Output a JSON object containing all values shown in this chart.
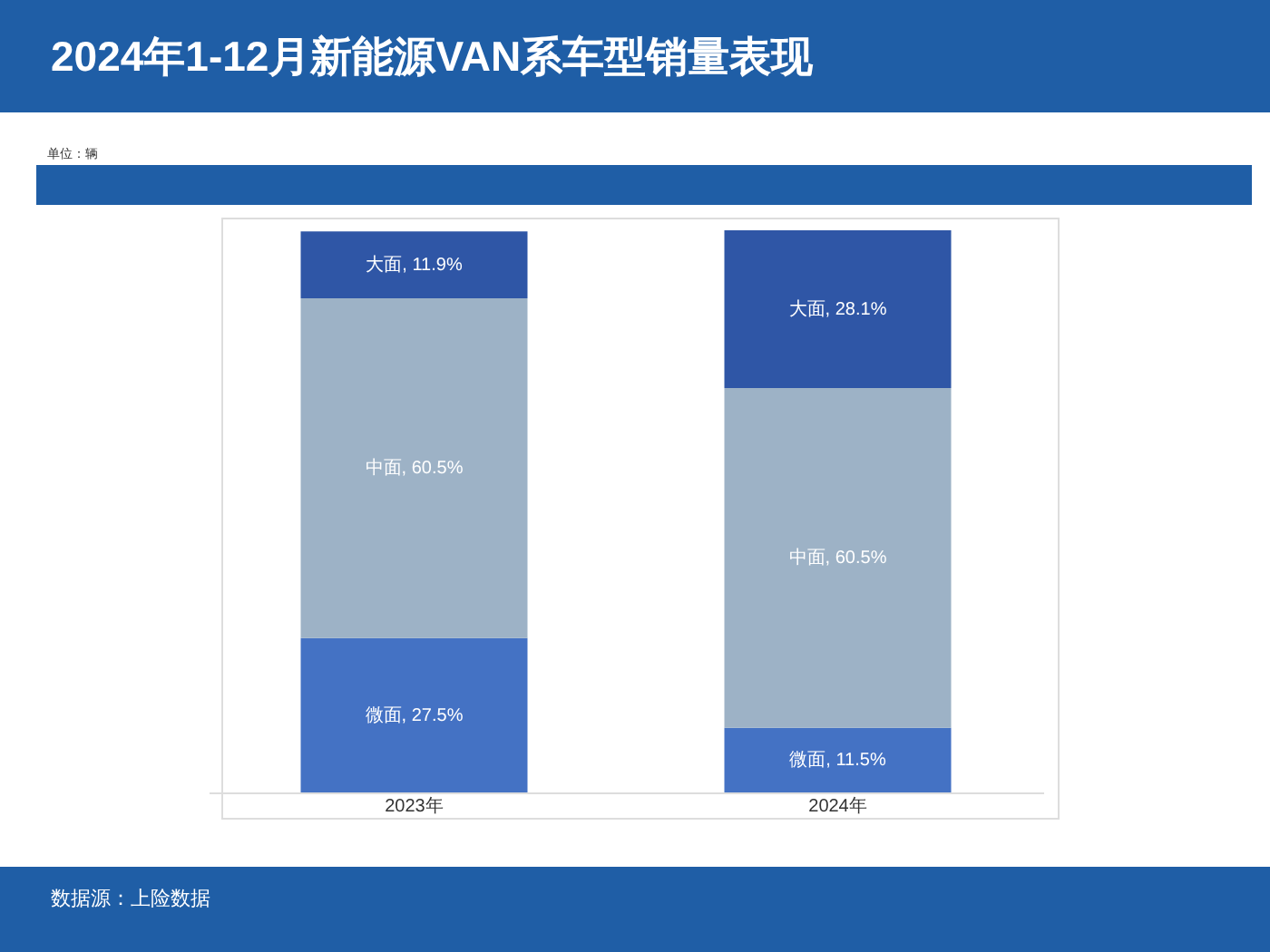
{
  "chart_data": {
    "type": "bar",
    "title": "2024年1-12月新能源VAN系车型销量表现",
    "annotations": [
      "单位：辆",
      "数据源：上险数据"
    ],
    "categories": [
      "2023年",
      "2024年"
    ],
    "stacked": true,
    "legend": false,
    "grid": false,
    "tick_labels": "x",
    "series": [
      {
        "color": "#4472c4",
        "values": [
          27.5,
          11.5
        ],
        "value_labels": [
          "微面, 27.5%",
          "微面, 11.5%"
        ]
      },
      {
        "color": "#9db2c6",
        "values": [
          60.5,
          60.5
        ],
        "value_labels": [
          "中面, 60.5%",
          "中面, 60.5%"
        ]
      },
      {
        "color": "#2f56a6",
        "values": [
          11.9,
          28.1
        ],
        "value_labels": [
          "大面, 11.9%",
          "大面, 28.1%"
        ]
      }
    ]
  }
}
